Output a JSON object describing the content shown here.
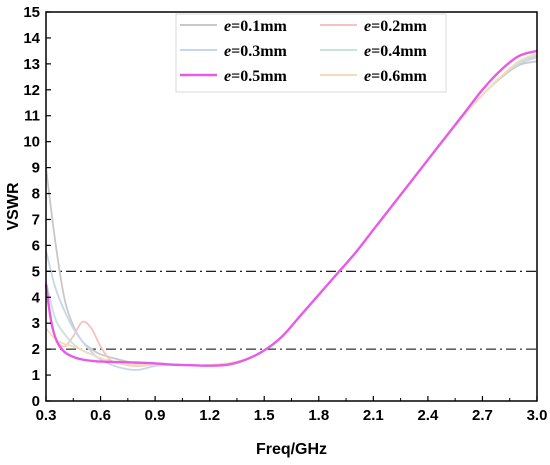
{
  "chart_data": {
    "type": "line",
    "xlabel": "Freq/GHz",
    "ylabel": "VSWR",
    "xlim": [
      0.3,
      3.0
    ],
    "ylim": [
      0,
      15
    ],
    "x_ticks": [
      "0.3",
      "0.6",
      "0.9",
      "1.2",
      "1.5",
      "1.8",
      "2.1",
      "2.4",
      "2.7",
      "3.0"
    ],
    "y_ticks": [
      "0",
      "1",
      "2",
      "3",
      "4",
      "5",
      "6",
      "7",
      "8",
      "9",
      "10",
      "11",
      "12",
      "13",
      "14",
      "15"
    ],
    "legend_position": "top-center",
    "reference_lines": [
      {
        "y": 5,
        "style": "dash-dot"
      },
      {
        "y": 2,
        "style": "dash-dot"
      }
    ],
    "series": [
      {
        "name_var": "e",
        "name_rest": "=0.1mm",
        "color": "#c8c8c8",
        "highlight": false,
        "x": [
          0.3,
          0.35,
          0.4,
          0.45,
          0.5,
          0.55,
          0.6,
          0.7,
          0.8,
          0.9,
          1.0,
          1.1,
          1.2,
          1.3,
          1.4,
          1.5,
          1.6,
          1.7,
          1.8,
          1.9,
          2.0,
          2.1,
          2.2,
          2.3,
          2.4,
          2.5,
          2.6,
          2.7,
          2.8,
          2.9,
          3.0
        ],
        "values": [
          9.0,
          6.2,
          4.0,
          2.9,
          2.3,
          2.0,
          1.8,
          1.6,
          1.45,
          1.45,
          1.4,
          1.38,
          1.38,
          1.45,
          1.6,
          1.95,
          2.5,
          3.3,
          4.1,
          4.9,
          5.7,
          6.6,
          7.5,
          8.4,
          9.3,
          10.2,
          11.05,
          11.8,
          12.45,
          12.95,
          13.1
        ]
      },
      {
        "name_var": "e",
        "name_rest": "=0.2mm",
        "color": "#f5c2c2",
        "highlight": false,
        "x": [
          0.3,
          0.35,
          0.4,
          0.45,
          0.5,
          0.55,
          0.6,
          0.65,
          0.7,
          0.8,
          0.9,
          1.0,
          1.1,
          1.2,
          1.3,
          1.4,
          1.5,
          1.6,
          1.7,
          1.8,
          1.9,
          2.0,
          2.1,
          2.2,
          2.3,
          2.4,
          2.5,
          2.6,
          2.7,
          2.8,
          2.9,
          3.0
        ],
        "values": [
          4.2,
          2.5,
          2.1,
          2.5,
          3.05,
          2.8,
          2.1,
          1.6,
          1.45,
          1.35,
          1.4,
          1.4,
          1.38,
          1.38,
          1.45,
          1.6,
          1.95,
          2.5,
          3.3,
          4.1,
          4.9,
          5.7,
          6.6,
          7.5,
          8.4,
          9.3,
          10.2,
          11.05,
          11.8,
          12.5,
          13.0,
          13.3
        ]
      },
      {
        "name_var": "e",
        "name_rest": "=0.3mm",
        "color": "#c5d7ef",
        "highlight": false,
        "x": [
          0.3,
          0.35,
          0.4,
          0.45,
          0.5,
          0.55,
          0.6,
          0.7,
          0.8,
          0.9,
          1.0,
          1.1,
          1.2,
          1.3,
          1.4,
          1.5,
          1.6,
          1.7,
          1.8,
          1.9,
          2.0,
          2.1,
          2.2,
          2.3,
          2.4,
          2.5,
          2.6,
          2.7,
          2.8,
          2.9,
          3.0
        ],
        "values": [
          5.8,
          4.4,
          3.5,
          2.8,
          2.3,
          1.9,
          1.6,
          1.3,
          1.2,
          1.35,
          1.4,
          1.38,
          1.38,
          1.45,
          1.6,
          1.95,
          2.5,
          3.3,
          4.1,
          4.9,
          5.7,
          6.6,
          7.5,
          8.4,
          9.3,
          10.2,
          11.05,
          11.8,
          12.5,
          13.0,
          13.25
        ]
      },
      {
        "name_var": "e",
        "name_rest": "=0.4mm",
        "color": "#c7e3da",
        "highlight": false,
        "x": [
          0.3,
          0.35,
          0.4,
          0.45,
          0.5,
          0.55,
          0.6,
          0.7,
          0.8,
          0.9,
          1.0,
          1.1,
          1.2,
          1.3,
          1.4,
          1.5,
          1.6,
          1.7,
          1.8,
          1.9,
          2.0,
          2.1,
          2.2,
          2.3,
          2.4,
          2.5,
          2.6,
          2.7,
          2.8,
          2.9,
          3.0
        ],
        "values": [
          4.6,
          3.2,
          2.6,
          2.2,
          1.95,
          1.8,
          1.65,
          1.45,
          1.38,
          1.4,
          1.4,
          1.38,
          1.38,
          1.45,
          1.6,
          1.95,
          2.5,
          3.3,
          4.1,
          4.9,
          5.7,
          6.6,
          7.5,
          8.4,
          9.3,
          10.2,
          11.05,
          11.8,
          12.5,
          13.05,
          13.35
        ]
      },
      {
        "name_var": "e",
        "name_rest": "=0.5mm",
        "color": "#e65ce6",
        "highlight": true,
        "x": [
          0.3,
          0.33,
          0.36,
          0.4,
          0.45,
          0.5,
          0.55,
          0.6,
          0.7,
          0.8,
          0.9,
          1.0,
          1.1,
          1.2,
          1.3,
          1.4,
          1.5,
          1.6,
          1.7,
          1.8,
          1.9,
          2.0,
          2.1,
          2.2,
          2.3,
          2.4,
          2.5,
          2.6,
          2.7,
          2.8,
          2.9,
          3.0
        ],
        "values": [
          4.5,
          3.0,
          2.3,
          1.9,
          1.7,
          1.6,
          1.55,
          1.52,
          1.5,
          1.48,
          1.45,
          1.4,
          1.38,
          1.36,
          1.4,
          1.6,
          1.95,
          2.5,
          3.3,
          4.1,
          4.9,
          5.7,
          6.6,
          7.5,
          8.4,
          9.3,
          10.2,
          11.1,
          12.0,
          12.75,
          13.3,
          13.5
        ]
      },
      {
        "name_var": "e",
        "name_rest": "=0.6mm",
        "color": "#f5dcb8",
        "highlight": false,
        "x": [
          0.3,
          0.35,
          0.4,
          0.45,
          0.5,
          0.55,
          0.6,
          0.7,
          0.8,
          0.9,
          1.0,
          1.1,
          1.2,
          1.3,
          1.4,
          1.5,
          1.6,
          1.7,
          1.8,
          1.9,
          2.0,
          2.1,
          2.2,
          2.3,
          2.4,
          2.5,
          2.6,
          2.7,
          2.8,
          2.9,
          3.0
        ],
        "values": [
          2.8,
          2.4,
          2.2,
          2.1,
          1.95,
          1.8,
          1.65,
          1.45,
          1.38,
          1.4,
          1.4,
          1.38,
          1.38,
          1.45,
          1.6,
          1.95,
          2.5,
          3.3,
          4.1,
          4.9,
          5.7,
          6.6,
          7.5,
          8.4,
          9.3,
          10.2,
          11.05,
          11.8,
          12.5,
          13.1,
          13.4
        ]
      }
    ]
  }
}
